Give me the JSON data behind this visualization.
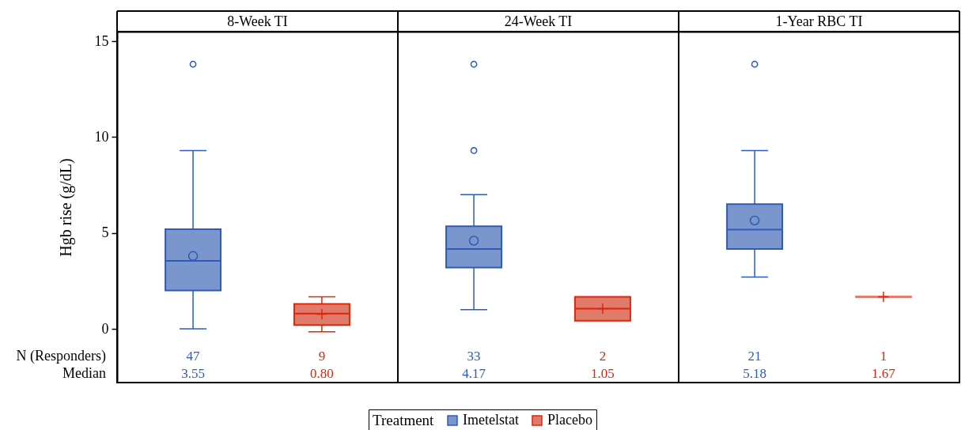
{
  "chart_data": {
    "type": "box",
    "categories": [
      "8-Week TI",
      "24-Week TI",
      "1-Year RBC TI"
    ],
    "ylabel": "Hgb rise (g/dL)",
    "ylim": [
      -2.8,
      15.5
    ],
    "yticks": [
      0,
      5,
      10,
      15
    ],
    "legend": "bottom",
    "legend_title": "Treatment",
    "annotations": [
      "N (Responders)",
      "Median",
      "47",
      "9",
      "33",
      "2",
      "21",
      "1"
    ],
    "series": [
      {
        "name": "Imetelstat",
        "color": "#7b96cc",
        "marker": "circle",
        "value_labels": [
          "3.55",
          "4.17",
          "5.18"
        ],
        "boxes": [
          {
            "low": 0,
            "q1": 2.0,
            "median": 3.55,
            "q3": 5.2,
            "high": 9.3,
            "mean": 3.8,
            "outliers": [
              13.8
            ]
          },
          {
            "low": 1.0,
            "q1": 3.2,
            "median": 4.17,
            "q3": 5.35,
            "high": 7.0,
            "mean": 4.6,
            "outliers": [
              9.3,
              13.8
            ]
          },
          {
            "low": 2.7,
            "q1": 4.17,
            "median": 5.18,
            "q3": 6.5,
            "high": 9.3,
            "mean": 5.65,
            "outliers": [
              13.8
            ]
          }
        ]
      },
      {
        "name": "Placebo",
        "color": "#e07b6b",
        "marker": "cross",
        "value_labels": [
          "0.80",
          "1.05",
          "1.67"
        ],
        "boxes": [
          {
            "low": -0.15,
            "q1": 0.2,
            "median": 0.8,
            "q3": 1.3,
            "high": 1.67,
            "mean": 0.77
          },
          {
            "low": 0.43,
            "q1": 0.43,
            "median": 1.05,
            "q3": 1.67,
            "high": 1.67,
            "mean": 1.05
          },
          {
            "low": 1.67,
            "q1": 1.67,
            "median": 1.67,
            "q3": 1.67,
            "high": 1.67,
            "mean": 1.67
          }
        ]
      }
    ]
  }
}
